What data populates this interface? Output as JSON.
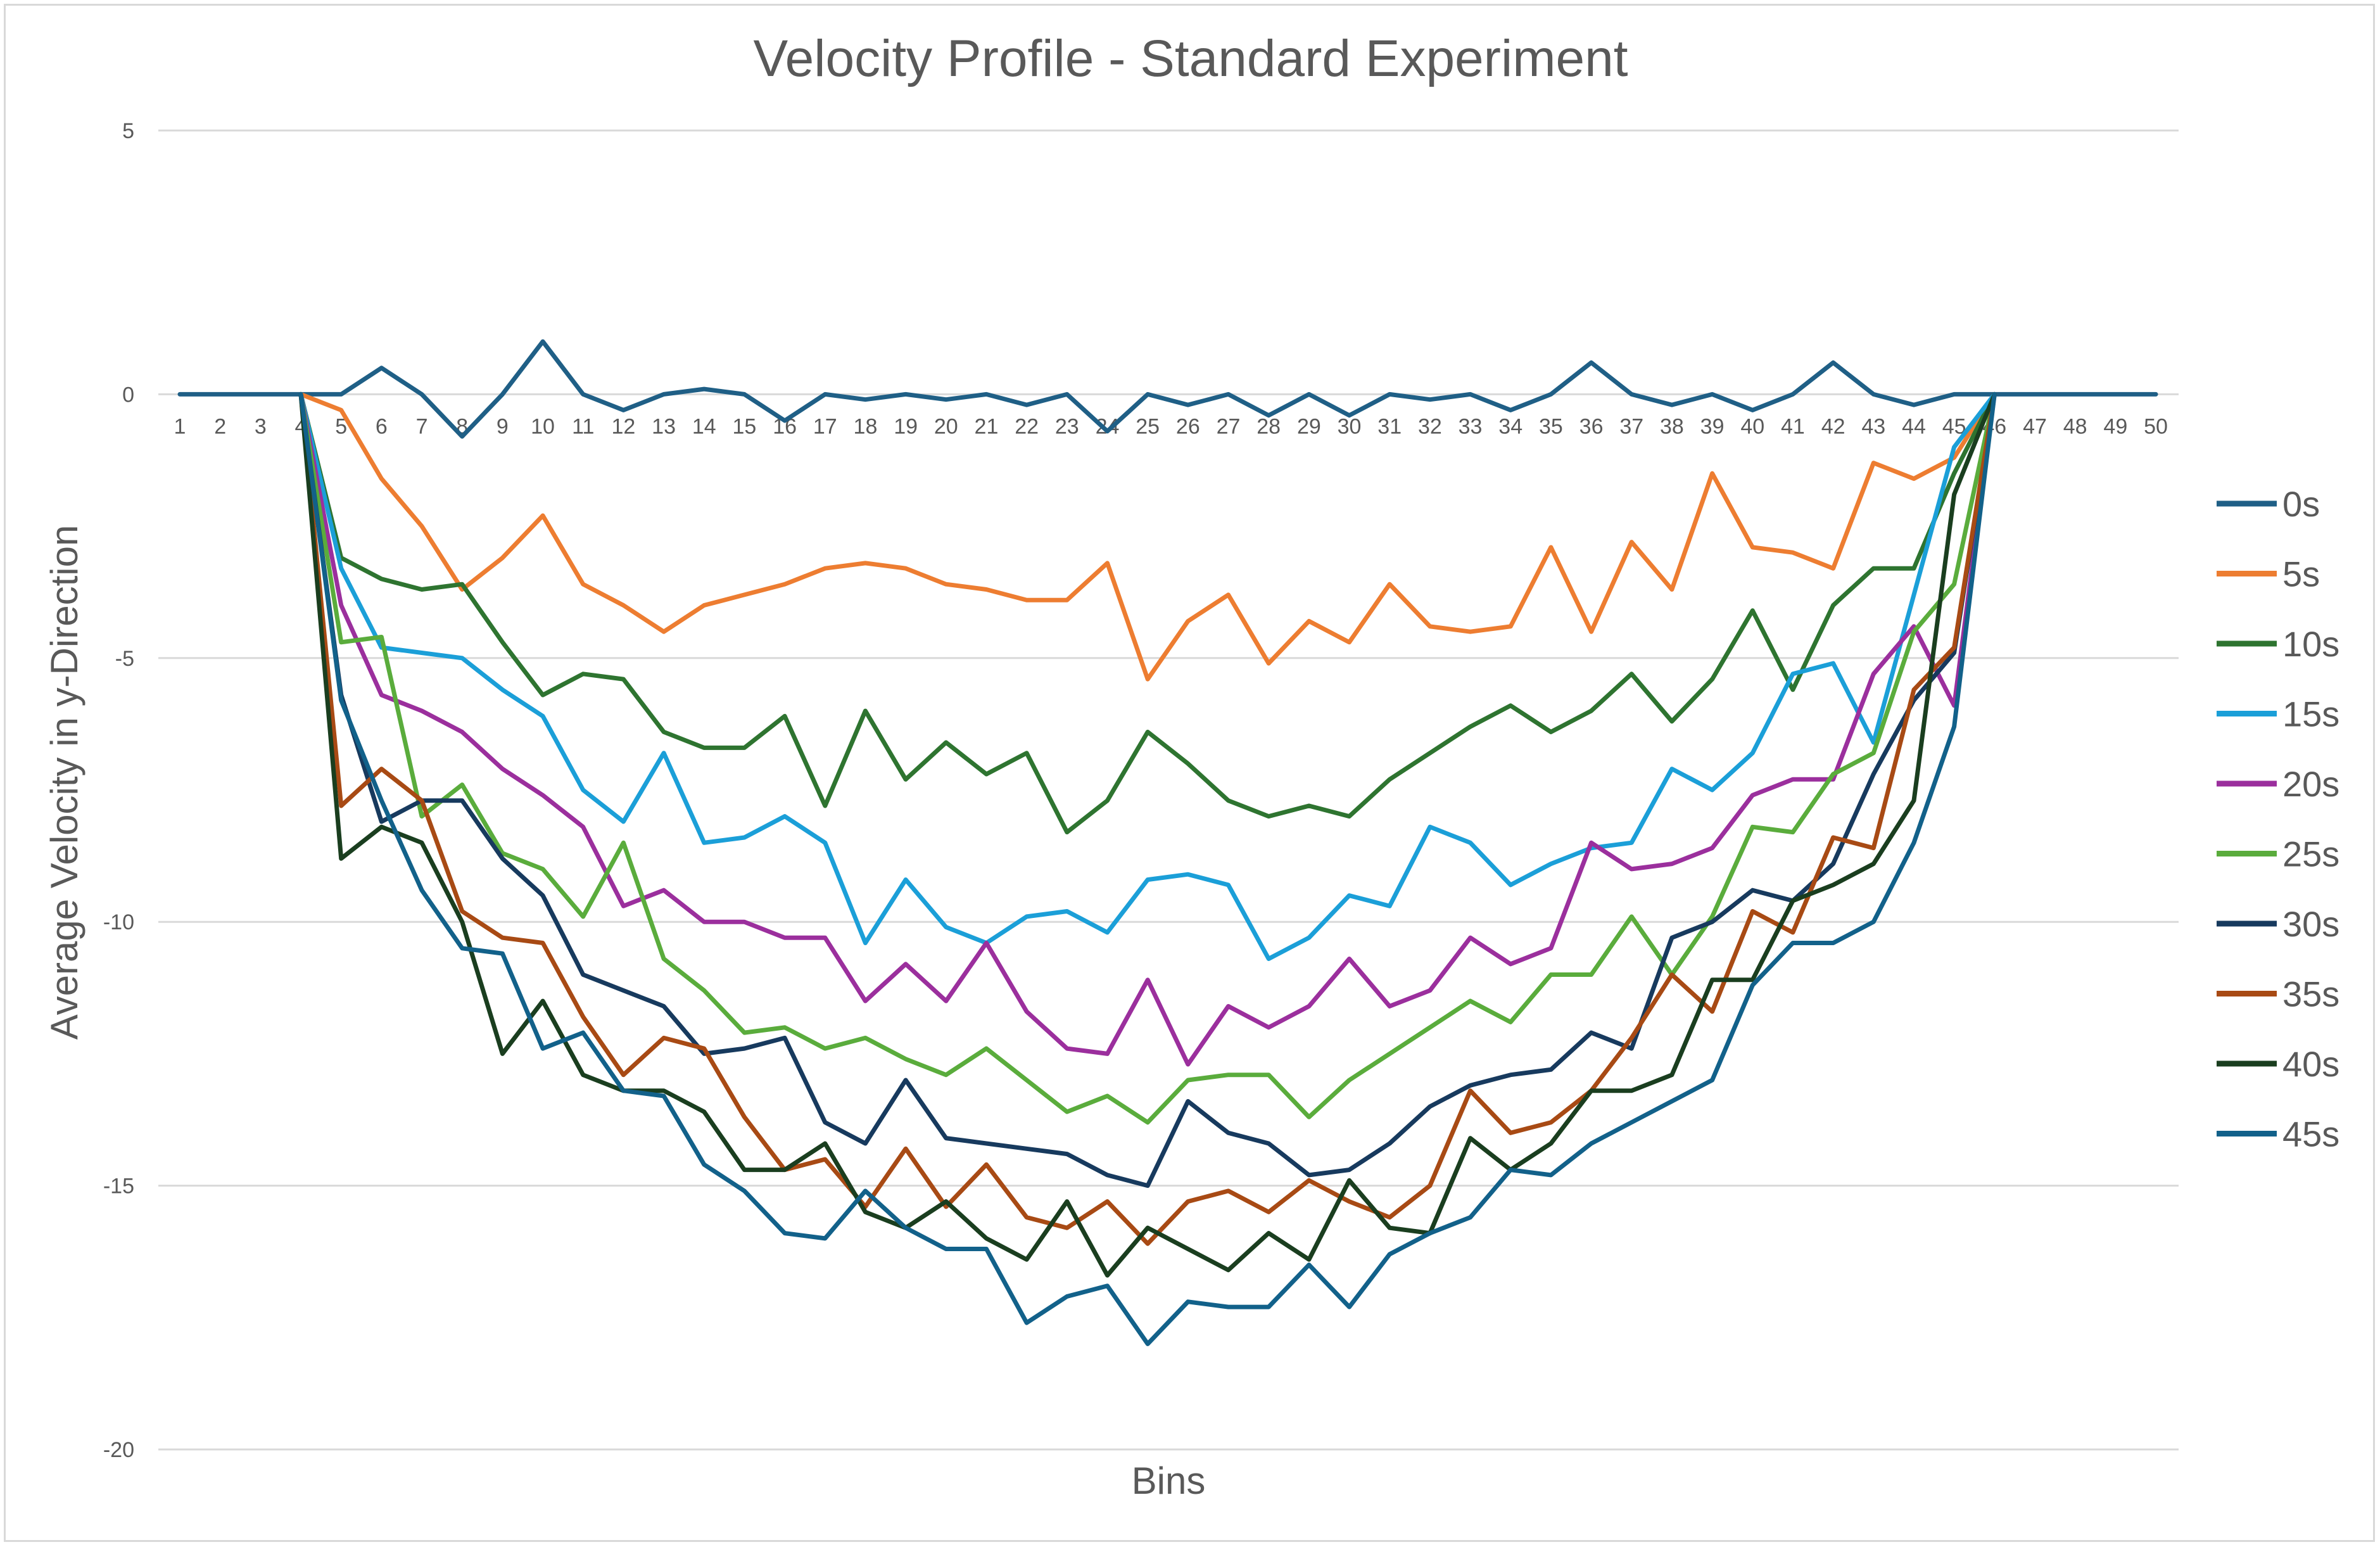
{
  "chart_data": {
    "type": "line",
    "title": "Velocity Profile - Standard Experiment",
    "xlabel": "Bins",
    "ylabel": "Average Velocity in y-Direction",
    "ylim": [
      -20,
      5
    ],
    "yticks": [
      5,
      0,
      -5,
      -10,
      -15,
      -20
    ],
    "grid": true,
    "legend_position": "right",
    "categories": [
      1,
      2,
      3,
      4,
      5,
      6,
      7,
      8,
      9,
      10,
      11,
      12,
      13,
      14,
      15,
      16,
      17,
      18,
      19,
      20,
      21,
      22,
      23,
      24,
      25,
      26,
      27,
      28,
      29,
      30,
      31,
      32,
      33,
      34,
      35,
      36,
      37,
      38,
      39,
      40,
      41,
      42,
      43,
      44,
      45,
      46,
      47,
      48,
      49,
      50
    ],
    "series": [
      {
        "name": "0s",
        "color": "#1f5f86",
        "values": [
          0,
          0,
          0,
          0,
          0,
          0.5,
          0,
          -0.8,
          0,
          1.0,
          0,
          -0.3,
          0,
          0.1,
          0,
          -0.5,
          0,
          -0.1,
          0,
          -0.1,
          0,
          -0.2,
          0,
          -0.7,
          0,
          -0.2,
          0,
          -0.4,
          0,
          -0.4,
          0,
          -0.1,
          0,
          -0.3,
          0,
          0.6,
          0,
          -0.2,
          0,
          -0.3,
          0,
          0.6,
          0,
          -0.2,
          0,
          0,
          0,
          0,
          0,
          0
        ]
      },
      {
        "name": "5s",
        "color": "#ed7d31",
        "values": [
          null,
          null,
          null,
          0,
          -0.3,
          -1.6,
          -2.5,
          -3.7,
          -3.1,
          -2.3,
          -3.6,
          -4.0,
          -4.5,
          -4.0,
          -3.8,
          -3.6,
          -3.3,
          -3.2,
          -3.3,
          -3.6,
          -3.7,
          -3.9,
          -3.9,
          -3.2,
          -5.4,
          -4.3,
          -3.8,
          -5.1,
          -4.3,
          -4.7,
          -3.6,
          -4.4,
          -4.5,
          -4.4,
          -2.9,
          -4.5,
          -2.8,
          -3.7,
          -1.5,
          -2.9,
          -3.0,
          -3.3,
          -1.3,
          -1.6,
          -1.2,
          0,
          null,
          null,
          null,
          null
        ]
      },
      {
        "name": "10s",
        "color": "#2e7430",
        "values": [
          null,
          null,
          null,
          0,
          -3.1,
          -3.5,
          -3.7,
          -3.6,
          -4.7,
          -5.7,
          -5.3,
          -5.4,
          -6.4,
          -6.7,
          -6.7,
          -6.1,
          -7.8,
          -6.0,
          -7.3,
          -6.6,
          -7.2,
          -6.8,
          -8.3,
          -7.7,
          -6.4,
          -7.0,
          -7.7,
          -8.0,
          -7.8,
          -8.0,
          -7.3,
          -6.8,
          -6.3,
          -5.9,
          -6.4,
          -6.0,
          -5.3,
          -6.2,
          -5.4,
          -4.1,
          -5.6,
          -4.0,
          -3.3,
          -3.3,
          -1.5,
          0,
          null,
          null,
          null,
          null
        ]
      },
      {
        "name": "15s",
        "color": "#1b9fd8",
        "values": [
          null,
          null,
          null,
          0,
          -3.3,
          -4.8,
          -4.9,
          -5.0,
          -5.6,
          -6.1,
          -7.5,
          -8.1,
          -6.8,
          -8.5,
          -8.4,
          -8.0,
          -8.5,
          -10.4,
          -9.2,
          -10.1,
          -10.4,
          -9.9,
          -9.8,
          -10.2,
          -9.2,
          -9.1,
          -9.3,
          -10.7,
          -10.3,
          -9.5,
          -9.7,
          -8.2,
          -8.5,
          -9.3,
          -8.9,
          -8.6,
          -8.5,
          -7.1,
          -7.5,
          -6.8,
          -5.3,
          -5.1,
          -6.6,
          -3.8,
          -1.0,
          0,
          null,
          null,
          null,
          null
        ]
      },
      {
        "name": "20s",
        "color": "#9b2f9d",
        "values": [
          null,
          null,
          null,
          0,
          -4.0,
          -5.7,
          -6.0,
          -6.4,
          -7.1,
          -7.6,
          -8.2,
          -9.7,
          -9.4,
          -10.0,
          -10.0,
          -10.3,
          -10.3,
          -11.5,
          -10.8,
          -11.5,
          -10.4,
          -11.7,
          -12.4,
          -12.5,
          -11.1,
          -12.7,
          -11.6,
          -12.0,
          -11.6,
          -10.7,
          -11.6,
          -11.3,
          -10.3,
          -10.8,
          -10.5,
          -8.5,
          -9.0,
          -8.9,
          -8.6,
          -7.6,
          -7.3,
          -7.3,
          -5.3,
          -4.4,
          -5.9,
          0,
          null,
          null,
          null,
          null
        ]
      },
      {
        "name": "25s",
        "color": "#5aac3c",
        "values": [
          null,
          null,
          null,
          0,
          -4.7,
          -4.6,
          -8.0,
          -7.4,
          -8.7,
          -9.0,
          -9.9,
          -8.5,
          -10.7,
          -11.3,
          -12.1,
          -12.0,
          -12.4,
          -12.2,
          -12.6,
          -12.9,
          -12.4,
          -13.0,
          -13.6,
          -13.3,
          -13.8,
          -13.0,
          -12.9,
          -12.9,
          -13.7,
          -13.0,
          -12.5,
          -12.0,
          -11.5,
          -11.9,
          -11.0,
          -11.0,
          -9.9,
          -11.0,
          -9.9,
          -8.2,
          -8.3,
          -7.2,
          -6.8,
          -4.5,
          -3.6,
          0,
          null,
          null,
          null,
          null
        ]
      },
      {
        "name": "30s",
        "color": "#173a5e",
        "values": [
          null,
          null,
          null,
          0,
          -5.7,
          -8.1,
          -7.7,
          -7.7,
          -8.8,
          -9.5,
          -11.0,
          -11.3,
          -11.6,
          -12.5,
          -12.4,
          -12.2,
          -13.8,
          -14.2,
          -13.0,
          -14.1,
          -14.2,
          -14.3,
          -14.4,
          -14.8,
          -15.0,
          -13.4,
          -14.0,
          -14.2,
          -14.8,
          -14.7,
          -14.2,
          -13.5,
          -13.1,
          -12.9,
          -12.8,
          -12.1,
          -12.4,
          -10.3,
          -10.0,
          -9.4,
          -9.6,
          -8.9,
          -7.2,
          -5.8,
          -4.9,
          0,
          null,
          null,
          null,
          null
        ]
      },
      {
        "name": "35s",
        "color": "#a84a14",
        "values": [
          null,
          null,
          null,
          0,
          -7.8,
          -7.1,
          -7.7,
          -9.8,
          -10.3,
          -10.4,
          -11.8,
          -12.9,
          -12.2,
          -12.4,
          -13.7,
          -14.7,
          -14.5,
          -15.4,
          -14.3,
          -15.4,
          -14.6,
          -15.6,
          -15.8,
          -15.3,
          -16.1,
          -15.3,
          -15.1,
          -15.5,
          -14.9,
          -15.3,
          -15.6,
          -15.0,
          -13.2,
          -14.0,
          -13.8,
          -13.2,
          -12.2,
          -11.0,
          -11.7,
          -9.8,
          -10.2,
          -8.4,
          -8.6,
          -5.6,
          -4.8,
          0,
          null,
          null,
          null,
          null
        ]
      },
      {
        "name": "40s",
        "color": "#1a3e1f",
        "values": [
          null,
          null,
          null,
          0,
          -8.8,
          -8.2,
          -8.5,
          -10.0,
          -12.5,
          -11.5,
          -12.9,
          -13.2,
          -13.2,
          -13.6,
          -14.7,
          -14.7,
          -14.2,
          -15.5,
          -15.8,
          -15.3,
          -16.0,
          -16.4,
          -15.3,
          -16.7,
          -15.8,
          -16.2,
          -16.6,
          -15.9,
          -16.4,
          -14.9,
          -15.8,
          -15.9,
          -14.1,
          -14.7,
          -14.2,
          -13.2,
          -13.2,
          -12.9,
          -11.1,
          -11.1,
          -9.6,
          -9.3,
          -8.9,
          -7.7,
          -1.9,
          0,
          null,
          null,
          null,
          null
        ]
      },
      {
        "name": "45s",
        "color": "#12618a",
        "values": [
          null,
          null,
          null,
          0,
          -5.8,
          -7.7,
          -9.4,
          -10.5,
          -10.6,
          -12.4,
          -12.1,
          -13.2,
          -13.3,
          -14.6,
          -15.1,
          -15.9,
          -16.0,
          -15.1,
          -15.8,
          -16.2,
          -16.2,
          -17.6,
          -17.1,
          -16.9,
          -18.0,
          -17.2,
          -17.3,
          -17.3,
          -16.5,
          -17.3,
          -16.3,
          -15.9,
          -15.6,
          -14.7,
          -14.8,
          -14.2,
          -13.8,
          -13.4,
          -13.0,
          -11.2,
          -10.4,
          -10.4,
          -10.0,
          -8.5,
          -6.3,
          0,
          null,
          null,
          null,
          null
        ]
      }
    ]
  }
}
